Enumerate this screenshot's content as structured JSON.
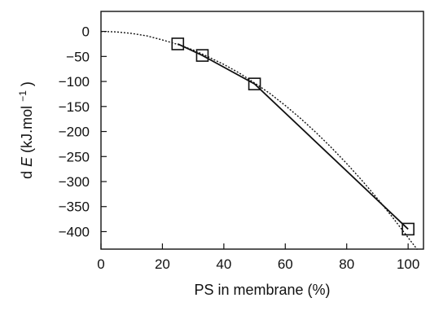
{
  "chart_data": {
    "type": "line",
    "xlabel": "PS in membrane (%)",
    "ylabel": "dE (kJ.mol⁻¹)",
    "ylabel_parts": {
      "d": "d",
      "E": "E",
      "rest": " (kJ.mol",
      "sup": "−1",
      "close": ")"
    },
    "xlim": [
      0,
      105
    ],
    "ylim": [
      -435,
      40
    ],
    "x_ticks": [
      0,
      20,
      40,
      60,
      80,
      100
    ],
    "y_ticks": [
      0,
      -50,
      -100,
      -150,
      -200,
      -250,
      -300,
      -350,
      -400
    ],
    "x_tick_labels": [
      "0",
      "20",
      "40",
      "60",
      "80",
      "100"
    ],
    "y_tick_labels": [
      "0",
      "−50",
      "−100",
      "−150",
      "−200",
      "−250",
      "−300",
      "−350",
      "−400"
    ],
    "grid": false,
    "series": [
      {
        "style": "solid",
        "markers": "open-square",
        "color": "#111111",
        "x": [
          25,
          33,
          50,
          100
        ],
        "y": [
          -25,
          -48,
          -105,
          -395
        ]
      },
      {
        "style": "dotted",
        "markers": "none",
        "color": "#111111",
        "function": "quadratic fit",
        "x": [
          0,
          5,
          10,
          15,
          20,
          25,
          30,
          35,
          40,
          45,
          50,
          55,
          60,
          65,
          70,
          75,
          80,
          85,
          90,
          95,
          100,
          103
        ],
        "y": [
          0,
          -1,
          -4,
          -9,
          -17,
          -26,
          -37,
          -51,
          -66,
          -83,
          -103,
          -124,
          -148,
          -174,
          -202,
          -232,
          -264,
          -298,
          -334,
          -372,
          -412,
          -436
        ]
      }
    ]
  }
}
